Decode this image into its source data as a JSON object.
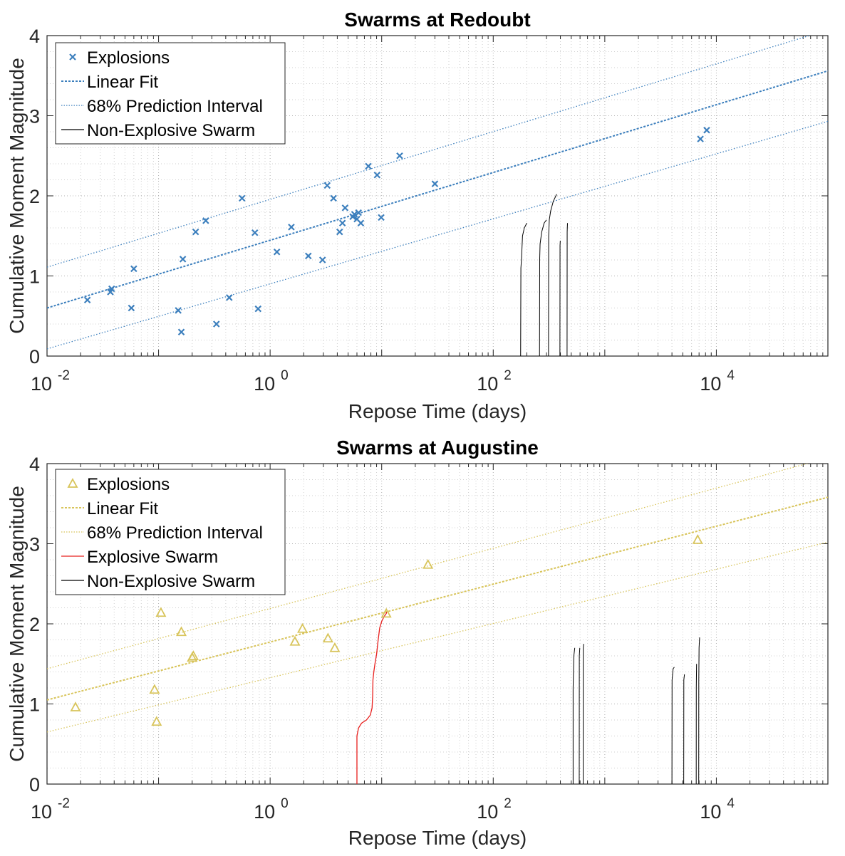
{
  "chart_data": [
    {
      "type": "scatter",
      "title": "Swarms at Redoubt",
      "xlabel": "Repose Time (days)",
      "ylabel": "Cumulative Moment Magnitude",
      "xscale": "log",
      "xlim": [
        0.01,
        100000
      ],
      "ylim": [
        0,
        4
      ],
      "xticks": [
        {
          "v": 0.01,
          "base": "10",
          "exp": "-2"
        },
        {
          "v": 1,
          "base": "10",
          "exp": "0"
        },
        {
          "v": 100,
          "base": "10",
          "exp": "2"
        },
        {
          "v": 10000,
          "base": "10",
          "exp": "4"
        }
      ],
      "yticks": [
        "0",
        "1",
        "2",
        "3",
        "4"
      ],
      "grid": "on",
      "legend_position": "top-left",
      "colors": {
        "explosions": "#3c7fbd",
        "swarm": "#000000"
      },
      "legend": [
        {
          "label": "Explosions",
          "kind": "x-marker",
          "color": "#3c7fbd"
        },
        {
          "label": "Linear Fit",
          "kind": "dashed",
          "color": "#3c7fbd"
        },
        {
          "label": "68% Prediction Interval",
          "kind": "dotted",
          "color": "#3c7fbd"
        },
        {
          "label": "Non-Explosive Swarm",
          "kind": "solid",
          "color": "#000000"
        }
      ],
      "explosions": [
        [
          0.023,
          0.7
        ],
        [
          0.037,
          0.8
        ],
        [
          0.038,
          0.84
        ],
        [
          0.057,
          0.6
        ],
        [
          0.06,
          1.09
        ],
        [
          0.15,
          0.57
        ],
        [
          0.16,
          0.3
        ],
        [
          0.165,
          1.21
        ],
        [
          0.215,
          1.55
        ],
        [
          0.265,
          1.69
        ],
        [
          0.33,
          0.4
        ],
        [
          0.43,
          0.73
        ],
        [
          0.56,
          1.97
        ],
        [
          0.73,
          1.54
        ],
        [
          0.78,
          0.59
        ],
        [
          1.15,
          1.3
        ],
        [
          1.55,
          1.61
        ],
        [
          2.2,
          1.25
        ],
        [
          2.95,
          1.2
        ],
        [
          3.25,
          2.13
        ],
        [
          3.7,
          1.97
        ],
        [
          4.2,
          1.55
        ],
        [
          4.45,
          1.66
        ],
        [
          4.7,
          1.85
        ],
        [
          5.5,
          1.74
        ],
        [
          5.7,
          1.77
        ],
        [
          6.0,
          1.71
        ],
        [
          6.2,
          1.79
        ],
        [
          6.5,
          1.66
        ],
        [
          7.6,
          2.37
        ],
        [
          9.1,
          2.26
        ],
        [
          9.9,
          1.73
        ],
        [
          14.5,
          2.5
        ],
        [
          30.0,
          2.15
        ],
        [
          7200,
          2.71
        ],
        [
          8200,
          2.82
        ]
      ],
      "linear_fit": {
        "x": [
          0.01,
          100000
        ],
        "y": [
          0.6,
          3.56
        ]
      },
      "prediction_interval": [
        {
          "x": [
            0.01,
            100000
          ],
          "y": [
            1.11,
            4.07
          ]
        },
        {
          "x": [
            0.01,
            100000
          ],
          "y": [
            0.09,
            2.93
          ]
        }
      ],
      "non_explosive_swarms": [
        [
          [
            176,
            0
          ],
          [
            177,
            1.1
          ],
          [
            179,
            1.2
          ],
          [
            183,
            1.5
          ],
          [
            190,
            1.6
          ],
          [
            200,
            1.66
          ]
        ],
        [
          [
            260,
            0
          ],
          [
            261,
            1.22
          ],
          [
            263,
            1.4
          ],
          [
            272,
            1.55
          ],
          [
            286,
            1.66
          ],
          [
            300,
            1.7
          ]
        ],
        [
          [
            313,
            0
          ],
          [
            314,
            1.5
          ],
          [
            318,
            1.7
          ],
          [
            327,
            1.81
          ],
          [
            345,
            1.93
          ],
          [
            370,
            2.02
          ]
        ],
        [
          [
            396,
            0
          ],
          [
            397,
            1.38
          ],
          [
            399,
            1.44
          ]
        ],
        [
          [
            459,
            0
          ],
          [
            460,
            1.55
          ],
          [
            463,
            1.66
          ]
        ]
      ]
    },
    {
      "type": "scatter",
      "title": "Swarms at Augustine",
      "xlabel": "Repose Time (days)",
      "ylabel": "Cumulative Moment Magnitude",
      "xscale": "log",
      "xlim": [
        0.01,
        100000
      ],
      "ylim": [
        0,
        4
      ],
      "xticks": [
        {
          "v": 0.01,
          "base": "10",
          "exp": "-2"
        },
        {
          "v": 1,
          "base": "10",
          "exp": "0"
        },
        {
          "v": 100,
          "base": "10",
          "exp": "2"
        },
        {
          "v": 10000,
          "base": "10",
          "exp": "4"
        }
      ],
      "yticks": [
        "0",
        "1",
        "2",
        "3",
        "4"
      ],
      "grid": "on",
      "legend_position": "top-left",
      "colors": {
        "explosions": "#d8c45a",
        "explosive_swarm": "#e8201e",
        "swarm": "#000000"
      },
      "legend": [
        {
          "label": "Explosions",
          "kind": "triangle-marker",
          "color": "#d8c45a"
        },
        {
          "label": "Linear Fit",
          "kind": "dashed",
          "color": "#d8c45a"
        },
        {
          "label": "68% Prediction Interval",
          "kind": "dotted",
          "color": "#d8c45a"
        },
        {
          "label": "Explosive Swarm",
          "kind": "solid",
          "color": "#e8201e"
        },
        {
          "label": "Non-Explosive Swarm",
          "kind": "solid",
          "color": "#000000"
        }
      ],
      "explosions": [
        [
          0.018,
          0.96
        ],
        [
          0.092,
          1.18
        ],
        [
          0.096,
          0.78
        ],
        [
          0.105,
          2.14
        ],
        [
          0.16,
          1.9
        ],
        [
          0.2,
          1.58
        ],
        [
          0.205,
          1.6
        ],
        [
          1.67,
          1.78
        ],
        [
          1.95,
          1.94
        ],
        [
          3.3,
          1.82
        ],
        [
          3.8,
          1.7
        ],
        [
          11.0,
          2.13
        ],
        [
          26.0,
          2.74
        ],
        [
          6800,
          3.05
        ]
      ],
      "linear_fit": {
        "x": [
          0.01,
          100000
        ],
        "y": [
          1.05,
          3.58
        ]
      },
      "prediction_interval": [
        {
          "x": [
            0.01,
            100000
          ],
          "y": [
            1.44,
            4.07
          ]
        },
        {
          "x": [
            0.01,
            100000
          ],
          "y": [
            0.65,
            3.02
          ]
        }
      ],
      "explosive_swarm": [
        [
          6.0,
          0
        ],
        [
          6.0,
          0.6
        ],
        [
          6.2,
          0.7
        ],
        [
          6.6,
          0.76
        ],
        [
          7.3,
          0.8
        ],
        [
          7.9,
          0.86
        ],
        [
          8.2,
          0.95
        ],
        [
          8.3,
          1.1
        ],
        [
          8.35,
          1.3
        ],
        [
          8.5,
          1.4
        ],
        [
          8.7,
          1.5
        ],
        [
          9.0,
          1.62
        ],
        [
          9.3,
          1.8
        ],
        [
          9.6,
          1.95
        ],
        [
          10.0,
          2.03
        ],
        [
          10.5,
          2.09
        ],
        [
          11.0,
          2.13
        ],
        [
          11.1,
          2.15
        ]
      ],
      "non_explosive_swarms": [
        [
          [
            520,
            0
          ],
          [
            520,
            1.2
          ],
          [
            528,
            1.6
          ],
          [
            538,
            1.7
          ]
        ],
        [
          [
            590,
            0
          ],
          [
            591,
            1.6
          ],
          [
            597,
            1.7
          ]
        ],
        [
          [
            640,
            0
          ],
          [
            641,
            1.7
          ],
          [
            646,
            1.75
          ]
        ],
        [
          [
            4000,
            0
          ],
          [
            4010,
            1.3
          ],
          [
            4100,
            1.44
          ],
          [
            4200,
            1.46
          ]
        ],
        [
          [
            5100,
            0
          ],
          [
            5110,
            1.3
          ],
          [
            5180,
            1.37
          ]
        ],
        [
          [
            6600,
            0
          ],
          [
            6610,
            1.2
          ],
          [
            6650,
            1.5
          ]
        ],
        [
          [
            6950,
            0
          ],
          [
            6960,
            1.3
          ],
          [
            7000,
            1.7
          ],
          [
            7080,
            1.83
          ]
        ]
      ]
    }
  ]
}
